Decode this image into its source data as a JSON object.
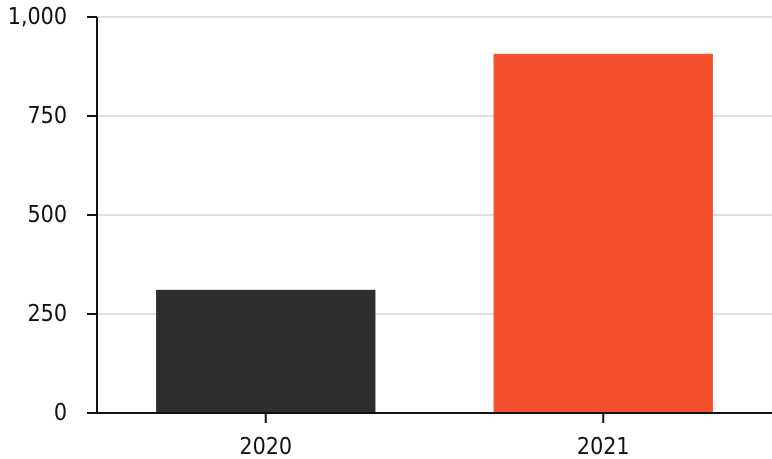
{
  "chart_data": {
    "type": "bar",
    "title": "",
    "xlabel": "",
    "ylabel": "",
    "categories": [
      "2020",
      "2021"
    ],
    "values": [
      311,
      907
    ],
    "bar_colors": [
      "#2e2e2e",
      "#f5502d"
    ],
    "ylim": [
      0,
      1000
    ],
    "y_ticks": [
      0,
      250,
      500,
      750,
      1000
    ],
    "y_tick_labels": [
      "0",
      "250",
      "500",
      "750",
      "1,000"
    ],
    "grid": true,
    "legend": "none"
  }
}
